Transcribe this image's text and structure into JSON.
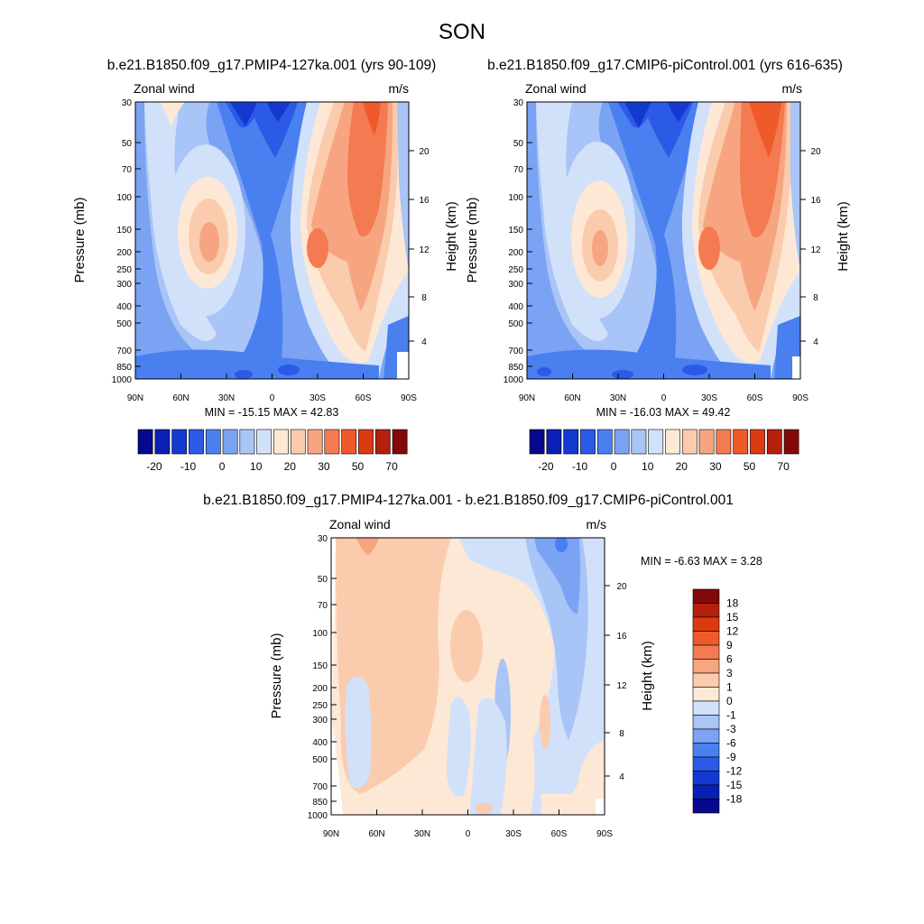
{
  "figure": {
    "title": "SON"
  },
  "panels": [
    {
      "id": "test",
      "title": "b.e21.B1850.f09_g17.PMIP4-127ka.001 (yrs 90-109)",
      "left_label": "Zonal wind",
      "right_label": "m/s",
      "stats": "MIN = -15.15  MAX =  42.83",
      "ylabel": "Pressure (mb)",
      "ylabel_right": "Height (km)"
    },
    {
      "id": "control",
      "title": "b.e21.B1850.f09_g17.CMIP6-piControl.001 (yrs 616-635)",
      "left_label": "Zonal wind",
      "right_label": "m/s",
      "stats": "MIN = -16.03  MAX =  49.42",
      "ylabel": "Pressure (mb)",
      "ylabel_right": "Height (km)"
    },
    {
      "id": "diff",
      "title": "b.e21.B1850.f09_g17.PMIP4-127ka.001 - b.e21.B1850.f09_g17.CMIP6-piControl.001",
      "left_label": "Zonal wind",
      "right_label": "m/s",
      "stats": "MIN =  -6.63  MAX =   3.28",
      "ylabel": "Pressure (mb)",
      "ylabel_right": "Height (km)"
    }
  ],
  "chart_data": [
    {
      "type": "heatmap",
      "panel": "test",
      "x_ticks": [
        "90N",
        "60N",
        "30N",
        "0",
        "30S",
        "60S",
        "90S"
      ],
      "y_ticks": [
        "30",
        "50",
        "70",
        "100",
        "150",
        "200",
        "250",
        "300",
        "400",
        "500",
        "700",
        "850",
        "1000"
      ],
      "y_scale": "log",
      "y_range": [
        1000,
        30
      ],
      "height_ticks_km": [
        "4",
        "8",
        "12",
        "16",
        "20"
      ],
      "contour_levels": [
        -25,
        -20,
        -15,
        -10,
        -5,
        0,
        5,
        10,
        15,
        20,
        25,
        30,
        40,
        50,
        60,
        70
      ],
      "colorbar_labels": [
        "-20",
        "-10",
        "0",
        "10",
        "20",
        "30",
        "50",
        "70"
      ],
      "colorbar_orientation": "horizontal",
      "min": -15.15,
      "max": 42.83
    },
    {
      "type": "heatmap",
      "panel": "control",
      "x_ticks": [
        "90N",
        "60N",
        "30N",
        "0",
        "30S",
        "60S",
        "90S"
      ],
      "y_ticks": [
        "30",
        "50",
        "70",
        "100",
        "150",
        "200",
        "250",
        "300",
        "400",
        "500",
        "700",
        "850",
        "1000"
      ],
      "y_scale": "log",
      "y_range": [
        1000,
        30
      ],
      "height_ticks_km": [
        "4",
        "8",
        "12",
        "16",
        "20"
      ],
      "contour_levels": [
        -25,
        -20,
        -15,
        -10,
        -5,
        0,
        5,
        10,
        15,
        20,
        25,
        30,
        40,
        50,
        60,
        70
      ],
      "colorbar_labels": [
        "-20",
        "-10",
        "0",
        "10",
        "20",
        "30",
        "50",
        "70"
      ],
      "colorbar_orientation": "horizontal",
      "min": -16.03,
      "max": 49.42
    },
    {
      "type": "heatmap",
      "panel": "diff",
      "x_ticks": [
        "90N",
        "60N",
        "30N",
        "0",
        "30S",
        "60S",
        "90S"
      ],
      "y_ticks": [
        "30",
        "50",
        "70",
        "100",
        "150",
        "200",
        "250",
        "300",
        "400",
        "500",
        "700",
        "850",
        "1000"
      ],
      "y_scale": "log",
      "y_range": [
        1000,
        30
      ],
      "height_ticks_km": [
        "4",
        "8",
        "12",
        "16",
        "20"
      ],
      "contour_levels": [
        -18,
        -15,
        -12,
        -9,
        -6,
        -3,
        -1,
        0,
        1,
        3,
        6,
        9,
        12,
        15,
        18
      ],
      "colorbar_labels": [
        "18",
        "15",
        "12",
        "9",
        "6",
        "3",
        "1",
        "0",
        "-1",
        "-3",
        "-6",
        "-9",
        "-12",
        "-15",
        "-18"
      ],
      "colorbar_orientation": "vertical",
      "min": -6.63,
      "max": 3.28
    }
  ],
  "colors": {
    "main_scale": [
      "#08088c",
      "#0a1fb4",
      "#1439d0",
      "#2a5ae6",
      "#4a7ff0",
      "#7ba3f4",
      "#a9c4f6",
      "#d2e1fa",
      "#fde8d6",
      "#fbcbad",
      "#f7a580",
      "#f47a52",
      "#ef5a2a",
      "#dc3b12",
      "#b5200c",
      "#830808"
    ],
    "diff_scale": [
      "#830808",
      "#b5200c",
      "#dc3b12",
      "#ef5a2a",
      "#f47a52",
      "#f7a580",
      "#fbcbad",
      "#fde8d6",
      "#d2e1fa",
      "#a9c4f6",
      "#7ba3f4",
      "#4a7ff0",
      "#2a5ae6",
      "#1439d0",
      "#0a1fb4",
      "#08088c"
    ]
  }
}
